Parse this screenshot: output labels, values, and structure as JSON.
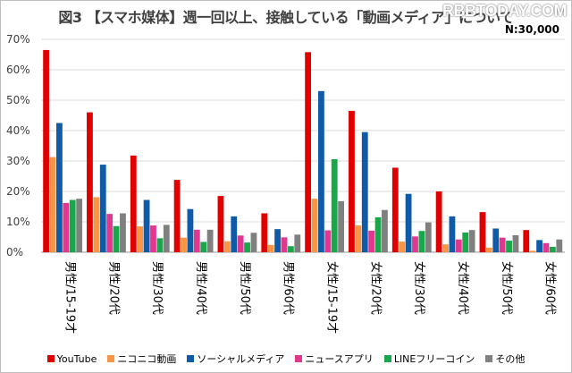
{
  "header": {
    "title": "図3 【スマホ媒体】週一回以上、接触している「動画メディア」について",
    "sample": "N:30,000",
    "watermark": "RBBTODAY.COM"
  },
  "chart_data": {
    "type": "bar",
    "categories": [
      "男性/15-19才",
      "男性/20代",
      "男性/30代",
      "男性/40代",
      "男性/50代",
      "男性/60代",
      "女性/15-19才",
      "女性/20代",
      "女性/30代",
      "女性/40代",
      "女性/50代",
      "女性/60代"
    ],
    "ylim": [
      0,
      70
    ],
    "yticks": [
      0,
      10,
      20,
      30,
      40,
      50,
      60,
      70
    ],
    "tick_suffix": "%",
    "grid": true,
    "legend_position": "bottom",
    "series": [
      {
        "name": "YouTube",
        "color": "#e00000",
        "values": [
          66.5,
          46,
          31.8,
          23.8,
          18.5,
          12.8,
          65.8,
          46.5,
          27.8,
          20,
          13.2,
          7.3
        ]
      },
      {
        "name": "ニコニコ動画",
        "color": "#f79646",
        "values": [
          31.3,
          18.1,
          8.5,
          4.8,
          3.6,
          2.4,
          17.6,
          8.8,
          3.5,
          2.6,
          1.5,
          0.5
        ]
      },
      {
        "name": "ソーシャルメディア",
        "color": "#0f5ba8",
        "values": [
          42.5,
          28.8,
          17.2,
          14.2,
          11.8,
          7.6,
          53,
          39.5,
          19.2,
          11.8,
          7.8,
          4
        ]
      },
      {
        "name": "ニュースアプリ",
        "color": "#e0388f",
        "values": [
          16.2,
          12.6,
          8.8,
          7.4,
          5.5,
          4.9,
          7.2,
          7.1,
          5.2,
          4.2,
          4.8,
          3
        ]
      },
      {
        "name": "LINEフリーコイン",
        "color": "#1aa64a",
        "values": [
          17.2,
          8.6,
          4.6,
          3.4,
          3.2,
          2,
          30.6,
          11.5,
          7,
          6.5,
          3.8,
          1.8
        ]
      },
      {
        "name": "その他",
        "color": "#808080",
        "values": [
          17.6,
          12.8,
          9,
          7.4,
          6.4,
          5.8,
          16.8,
          13.9,
          9.8,
          7.3,
          5.6,
          4.2
        ]
      }
    ]
  }
}
